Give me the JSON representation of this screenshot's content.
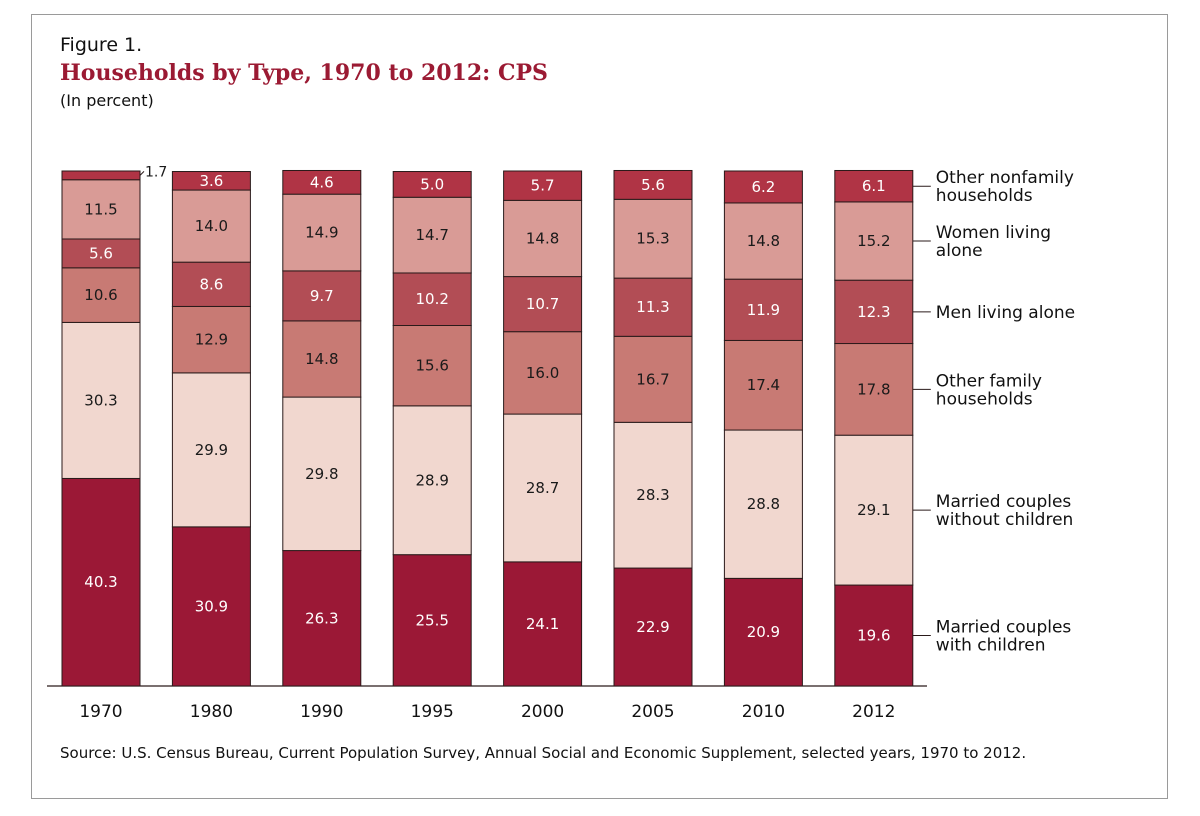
{
  "figure_label": "Figure 1.",
  "title": "Households by Type, 1970 to 2012: CPS",
  "subtitle": "(In percent)",
  "source": "Source: U.S. Census Bureau, Current Population Survey, Annual Social and Economic Supplement, selected years, 1970 to 2012.",
  "colors": {
    "married_with_children": "#9b1836",
    "married_without_children": "#f1d7cf",
    "other_family": "#c87a74",
    "men_alone": "#b24d55",
    "women_alone": "#d99b96",
    "other_nonfamily": "#b03445",
    "border": "#2a1a1a"
  },
  "chart_data": {
    "type": "bar",
    "stacked": true,
    "categories": [
      "1970",
      "1980",
      "1990",
      "1995",
      "2000",
      "2005",
      "2010",
      "2012"
    ],
    "ylim": [
      0,
      100
    ],
    "grid": false,
    "legend_position": "right",
    "series": [
      {
        "name": "Married couples with children",
        "label_lines": [
          "Married couples",
          "with children"
        ],
        "values": [
          40.3,
          30.9,
          26.3,
          25.5,
          24.1,
          22.9,
          20.9,
          19.6
        ],
        "color": "#9b1836",
        "text_color": "#ffffff"
      },
      {
        "name": "Married couples without children",
        "label_lines": [
          "Married couples",
          "without children"
        ],
        "values": [
          30.3,
          29.9,
          29.8,
          28.9,
          28.7,
          28.3,
          28.8,
          29.1
        ],
        "color": "#f1d7cf",
        "text_color": "#1a1a1a"
      },
      {
        "name": "Other family households",
        "label_lines": [
          "Other family",
          "households"
        ],
        "values": [
          10.6,
          12.9,
          14.8,
          15.6,
          16.0,
          16.7,
          17.4,
          17.8
        ],
        "color": "#c87a74",
        "text_color": "#1a1a1a"
      },
      {
        "name": "Men living alone",
        "label_lines": [
          "Men living alone"
        ],
        "values": [
          5.6,
          8.6,
          9.7,
          10.2,
          10.7,
          11.3,
          11.9,
          12.3
        ],
        "color": "#b24d55",
        "text_color": "#ffffff"
      },
      {
        "name": "Women living alone",
        "label_lines": [
          "Women living",
          "alone"
        ],
        "values": [
          11.5,
          14.0,
          14.9,
          14.7,
          14.8,
          15.3,
          14.8,
          15.2
        ],
        "color": "#d99b96",
        "text_color": "#1a1a1a"
      },
      {
        "name": "Other nonfamily households",
        "label_lines": [
          "Other nonfamily",
          "households"
        ],
        "values": [
          1.7,
          3.6,
          4.6,
          5.0,
          5.7,
          5.6,
          6.2,
          6.1
        ],
        "color": "#b03445",
        "text_color": "#ffffff"
      }
    ]
  }
}
